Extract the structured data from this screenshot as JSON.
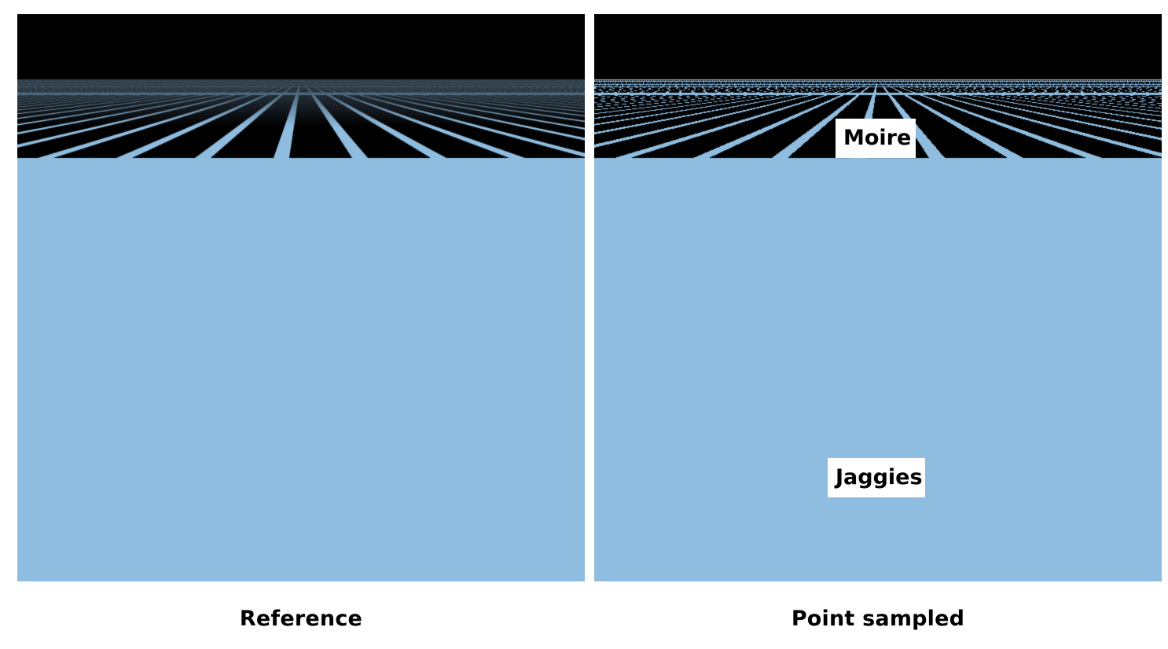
{
  "panels": {
    "left": {
      "caption": "Reference"
    },
    "right": {
      "caption": "Point sampled"
    }
  },
  "annotations": {
    "moire": "Moire",
    "jaggies": "Jaggies"
  },
  "colors": {
    "grid_line": "#8fbde0",
    "background": "#000000",
    "page": "#ffffff"
  }
}
